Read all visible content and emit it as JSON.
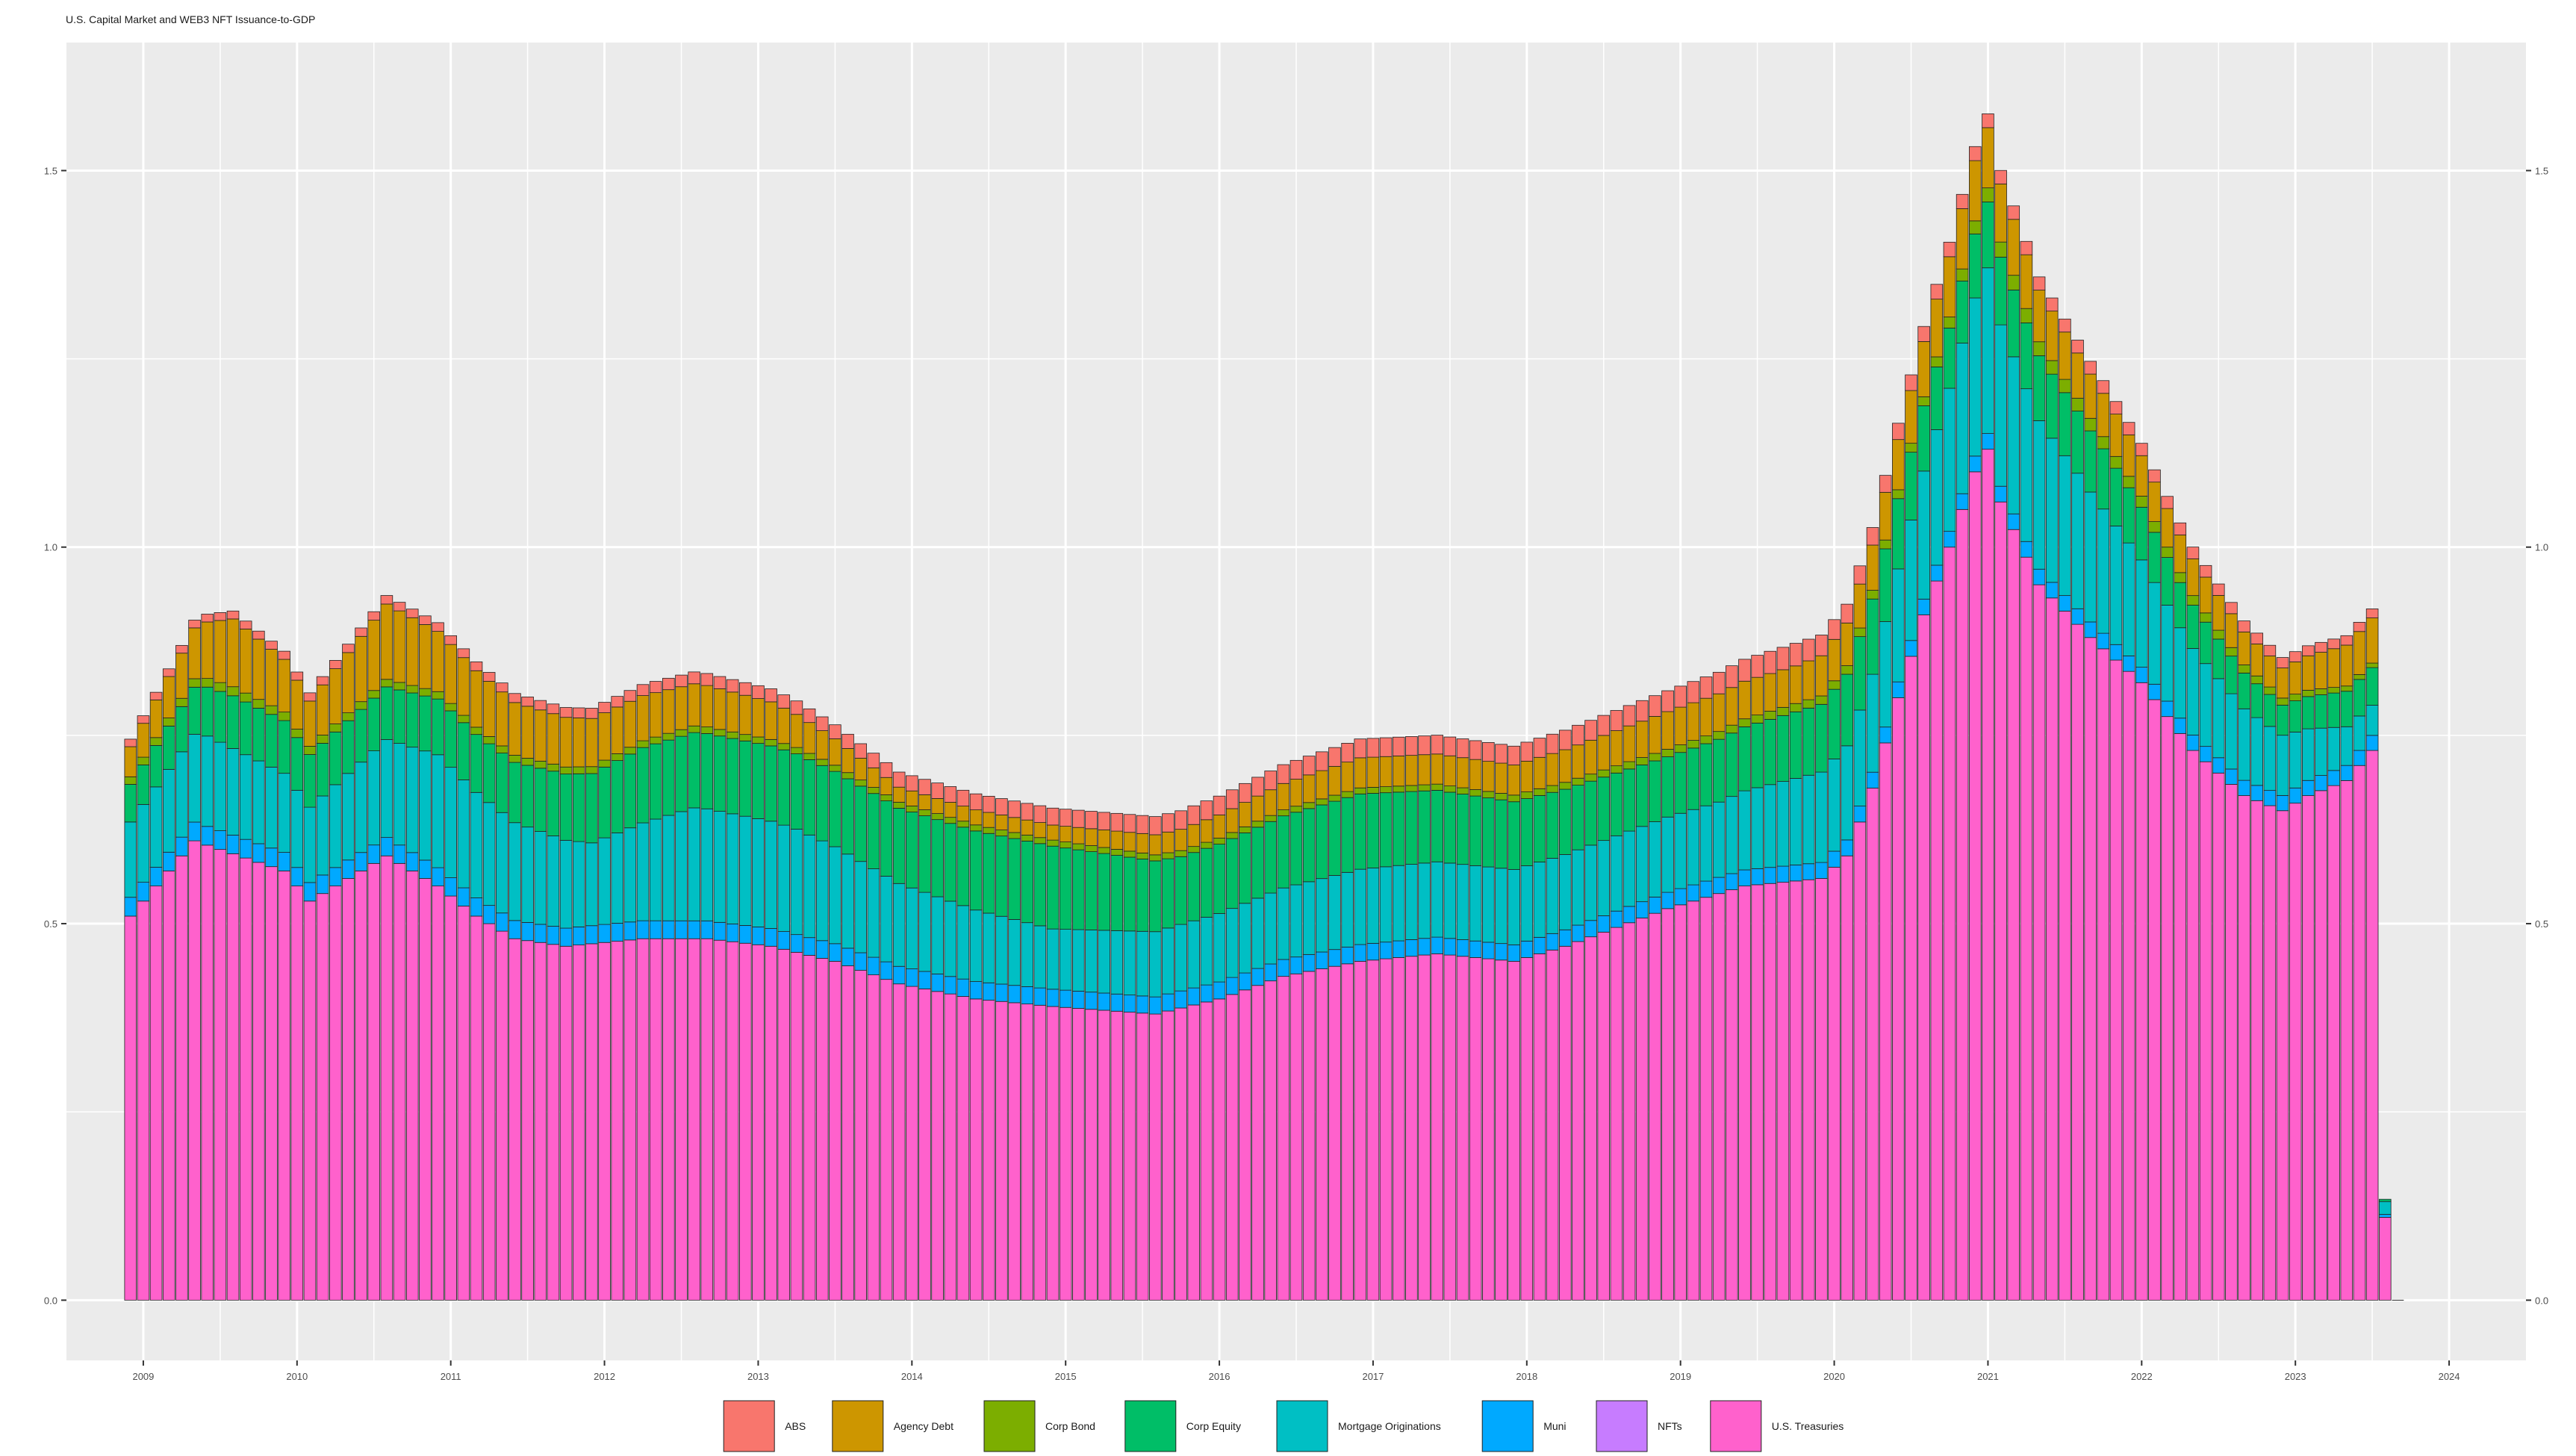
{
  "chart_data": {
    "type": "bar",
    "stacked": true,
    "title": "U.S. Capital Market and WEB3 NFT Issuance-to-GDP",
    "xlabel": "",
    "ylabel": "",
    "x_ticks": [
      "2009",
      "2010",
      "2011",
      "2012",
      "2013",
      "2014",
      "2015",
      "2016",
      "2017",
      "2018",
      "2019",
      "2020",
      "2021",
      "2022",
      "2023",
      "2024"
    ],
    "y_ticks": [
      "0.0",
      "0.5",
      "1.0",
      "1.5"
    ],
    "ylim": [
      -0.08,
      1.67
    ],
    "xlim": [
      "2008-07",
      "2024-07"
    ],
    "grid": true,
    "legend_position": "bottom",
    "series_order_bottom_to_top": [
      "U.S. Treasuries",
      "Muni",
      "Mortgage Originations",
      "Corp Equity",
      "Corp Bond",
      "Agency Debt",
      "ABS",
      "NFTs"
    ],
    "series": [
      {
        "name": "ABS",
        "color": "#F8766D"
      },
      {
        "name": "Agency Debt",
        "color": "#CD9600"
      },
      {
        "name": "Corp Bond",
        "color": "#7CAE00"
      },
      {
        "name": "Corp Equity",
        "color": "#00BE67"
      },
      {
        "name": "Mortgage Originations",
        "color": "#00BFC4"
      },
      {
        "name": "Muni",
        "color": "#00A9FF"
      },
      {
        "name": "NFTs",
        "color": "#C77CFF"
      },
      {
        "name": "U.S. Treasuries",
        "color": "#FF61CC"
      }
    ],
    "start_month": "2008-12",
    "anchors": {
      "treasuries": [
        [
          0,
          0.51
        ],
        [
          3,
          0.57
        ],
        [
          5,
          0.61
        ],
        [
          12,
          0.57
        ],
        [
          14,
          0.53
        ],
        [
          20,
          0.59
        ],
        [
          24,
          0.55
        ],
        [
          27,
          0.51
        ],
        [
          30,
          0.48
        ],
        [
          34,
          0.47
        ],
        [
          40,
          0.48
        ],
        [
          45,
          0.48
        ],
        [
          50,
          0.47
        ],
        [
          55,
          0.45
        ],
        [
          60,
          0.42
        ],
        [
          66,
          0.4
        ],
        [
          72,
          0.39
        ],
        [
          80,
          0.38
        ],
        [
          85,
          0.4
        ],
        [
          90,
          0.43
        ],
        [
          96,
          0.45
        ],
        [
          102,
          0.46
        ],
        [
          108,
          0.45
        ],
        [
          112,
          0.47
        ],
        [
          120,
          0.52
        ],
        [
          126,
          0.55
        ],
        [
          132,
          0.56
        ],
        [
          134,
          0.59
        ],
        [
          136,
          0.68
        ],
        [
          138,
          0.8
        ],
        [
          140,
          0.91
        ],
        [
          142,
          1.0
        ],
        [
          144,
          1.1
        ],
        [
          145,
          1.13
        ],
        [
          146,
          1.06
        ],
        [
          149,
          0.95
        ],
        [
          153,
          0.88
        ],
        [
          157,
          0.82
        ],
        [
          161,
          0.73
        ],
        [
          165,
          0.67
        ],
        [
          168,
          0.65
        ],
        [
          170,
          0.67
        ],
        [
          173,
          0.69
        ],
        [
          175,
          0.73
        ],
        [
          176,
          0.11
        ]
      ],
      "muni": [
        [
          0,
          0.025
        ],
        [
          175,
          0.02
        ],
        [
          176,
          0.004
        ]
      ],
      "mortgage": [
        [
          0,
          0.1
        ],
        [
          6,
          0.12
        ],
        [
          14,
          0.1
        ],
        [
          24,
          0.15
        ],
        [
          36,
          0.11
        ],
        [
          44,
          0.15
        ],
        [
          52,
          0.14
        ],
        [
          60,
          0.11
        ],
        [
          72,
          0.08
        ],
        [
          84,
          0.09
        ],
        [
          96,
          0.1
        ],
        [
          108,
          0.1
        ],
        [
          124,
          0.1
        ],
        [
          132,
          0.12
        ],
        [
          136,
          0.13
        ],
        [
          141,
          0.18
        ],
        [
          145,
          0.22
        ],
        [
          152,
          0.18
        ],
        [
          160,
          0.12
        ],
        [
          168,
          0.08
        ],
        [
          175,
          0.04
        ],
        [
          176,
          0.017
        ]
      ],
      "equity": [
        [
          0,
          0.05
        ],
        [
          8,
          0.07
        ],
        [
          20,
          0.07
        ],
        [
          30,
          0.08
        ],
        [
          40,
          0.1
        ],
        [
          52,
          0.1
        ],
        [
          60,
          0.1
        ],
        [
          72,
          0.11
        ],
        [
          82,
          0.09
        ],
        [
          96,
          0.1
        ],
        [
          108,
          0.09
        ],
        [
          120,
          0.08
        ],
        [
          132,
          0.09
        ],
        [
          136,
          0.1
        ],
        [
          142,
          0.08
        ],
        [
          146,
          0.09
        ],
        [
          154,
          0.08
        ],
        [
          160,
          0.06
        ],
        [
          168,
          0.04
        ],
        [
          175,
          0.05
        ],
        [
          176,
          0.003
        ]
      ],
      "corpbond": [
        [
          0,
          0.01
        ],
        [
          8,
          0.012
        ],
        [
          20,
          0.01
        ],
        [
          60,
          0.008
        ],
        [
          100,
          0.008
        ],
        [
          140,
          0.012
        ],
        [
          146,
          0.02
        ],
        [
          175,
          0.006
        ],
        [
          176,
          0.0
        ]
      ],
      "agency": [
        [
          0,
          0.04
        ],
        [
          4,
          0.06
        ],
        [
          8,
          0.09
        ],
        [
          14,
          0.06
        ],
        [
          20,
          0.1
        ],
        [
          24,
          0.08
        ],
        [
          30,
          0.07
        ],
        [
          40,
          0.06
        ],
        [
          50,
          0.05
        ],
        [
          60,
          0.02
        ],
        [
          72,
          0.02
        ],
        [
          84,
          0.03
        ],
        [
          96,
          0.04
        ],
        [
          108,
          0.04
        ],
        [
          120,
          0.05
        ],
        [
          130,
          0.05
        ],
        [
          136,
          0.06
        ],
        [
          142,
          0.08
        ],
        [
          145,
          0.08
        ],
        [
          152,
          0.06
        ],
        [
          160,
          0.05
        ],
        [
          168,
          0.04
        ],
        [
          175,
          0.06
        ],
        [
          176,
          0.0
        ]
      ],
      "abs": [
        [
          0,
          0.01
        ],
        [
          30,
          0.012
        ],
        [
          60,
          0.02
        ],
        [
          84,
          0.025
        ],
        [
          108,
          0.025
        ],
        [
          130,
          0.03
        ],
        [
          134,
          0.025
        ],
        [
          140,
          0.02
        ],
        [
          146,
          0.018
        ],
        [
          160,
          0.016
        ],
        [
          175,
          0.012
        ],
        [
          176,
          0.0
        ]
      ]
    }
  }
}
